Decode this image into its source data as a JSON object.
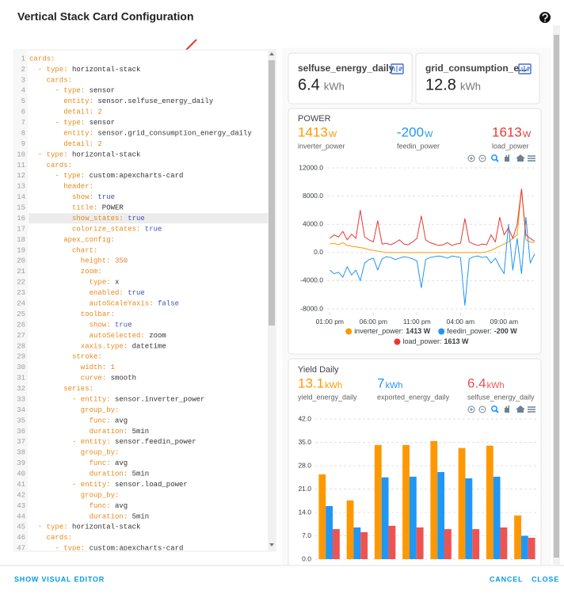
{
  "dialog": {
    "title": "Vertical Stack Card Configuration"
  },
  "editor": {
    "lines": [
      {
        "n": 1,
        "key": "cards:"
      },
      {
        "n": 2,
        "key": "  - type:",
        "value": "horizontal-stack"
      },
      {
        "n": 3,
        "key": "    cards:"
      },
      {
        "n": 4,
        "key": "      - type:",
        "value": "sensor"
      },
      {
        "n": 5,
        "key": "        entity:",
        "value": "sensor.selfuse_energy_daily"
      },
      {
        "n": 6,
        "key": "        detail:",
        "value": "2"
      },
      {
        "n": 7,
        "key": "      - type:",
        "value": "sensor"
      },
      {
        "n": 8,
        "key": "        entity:",
        "value": "sensor.grid_consumption_energy_daily"
      },
      {
        "n": 9,
        "key": "        detail:",
        "value": "2"
      },
      {
        "n": 10,
        "key": "  - type:",
        "value": "horizontal-stack"
      },
      {
        "n": 11,
        "key": "    cards:"
      },
      {
        "n": 12,
        "key": "      - type:",
        "value": "custom:apexcharts-card"
      },
      {
        "n": 13,
        "key": "        header:"
      },
      {
        "n": 14,
        "key": "          show:",
        "value": "true"
      },
      {
        "n": 15,
        "key": "          title:",
        "value": "POWER"
      },
      {
        "n": 16,
        "key": "          show_states:",
        "value": "true",
        "active": true
      },
      {
        "n": 17,
        "key": "          colorize_states:",
        "value": "true"
      },
      {
        "n": 18,
        "key": "        apex_config:"
      },
      {
        "n": 19,
        "key": "          chart:"
      },
      {
        "n": 20,
        "key": "            height:",
        "value": "350"
      },
      {
        "n": 21,
        "key": "            zoom:"
      },
      {
        "n": 22,
        "key": "              type:",
        "value": "x"
      },
      {
        "n": 23,
        "key": "              enabled:",
        "value": "true"
      },
      {
        "n": 24,
        "key": "              autoScaleYaxis:",
        "value": "false"
      },
      {
        "n": 25,
        "key": "            toolbar:"
      },
      {
        "n": 26,
        "key": "              show:",
        "value": "true"
      },
      {
        "n": 27,
        "key": "              autoSelected:",
        "value": "zoom"
      },
      {
        "n": 28,
        "key": "            xaxis.type:",
        "value": "datetime"
      },
      {
        "n": 29,
        "key": "          stroke:"
      },
      {
        "n": 30,
        "key": "            width:",
        "value": "1"
      },
      {
        "n": 31,
        "key": "            curve:",
        "value": "smooth"
      },
      {
        "n": 32,
        "key": "        series:"
      },
      {
        "n": 33,
        "key": "          - entity:",
        "value": "sensor.inverter_power"
      },
      {
        "n": 34,
        "key": "            group_by:"
      },
      {
        "n": 35,
        "key": "              func:",
        "value": "avg"
      },
      {
        "n": 36,
        "key": "              duration:",
        "value": "5min"
      },
      {
        "n": 37,
        "key": "          - entity:",
        "value": "sensor.feedin_power"
      },
      {
        "n": 38,
        "key": "            group_by:"
      },
      {
        "n": 39,
        "key": "              func:",
        "value": "avg"
      },
      {
        "n": 40,
        "key": "              duration:",
        "value": "5min"
      },
      {
        "n": 41,
        "key": "          - entity:",
        "value": "sensor.load_power"
      },
      {
        "n": 42,
        "key": "            group_by:"
      },
      {
        "n": 43,
        "key": "              func:",
        "value": "avg"
      },
      {
        "n": 44,
        "key": "              duration:",
        "value": "5min"
      },
      {
        "n": 45,
        "key": "  - type:",
        "value": "horizontal-stack"
      },
      {
        "n": 46,
        "key": "    cards:"
      },
      {
        "n": 47,
        "key": "      - type:",
        "value": "custom:apexcharts-card"
      }
    ]
  },
  "entity_cards": [
    {
      "name": "selfuse_energy_daily",
      "value": "6.4",
      "unit": "kWh"
    },
    {
      "name": "grid_consumption_e...",
      "value": "12.8",
      "unit": "kWh"
    }
  ],
  "power_card": {
    "title": "POWER",
    "chart": {
      "type": "line",
      "x": [
        13,
        13.5,
        14,
        14.5,
        15,
        15.5,
        16,
        16.5,
        17,
        17.5,
        18,
        18.5,
        19,
        19.5,
        20,
        20.5,
        21,
        21.5,
        22,
        22.5,
        23,
        23.5,
        24,
        24.5,
        25,
        25.5,
        26,
        26.5,
        27,
        27.5,
        28,
        28.5,
        29,
        29.5,
        30,
        30.5,
        31,
        31.5,
        32,
        32.5,
        33,
        33.5,
        34,
        34.5,
        35,
        35.5,
        36,
        36.5
      ],
      "xlim": [
        12.7,
        36.6
      ],
      "xticks": [
        {
          "value": 13,
          "label": "01:00 pm"
        },
        {
          "value": 18,
          "label": "06:00 pm"
        },
        {
          "value": 23,
          "label": "11:00 pm"
        },
        {
          "value": 28,
          "label": "04:00 am"
        },
        {
          "value": 33,
          "label": "09:00 am"
        }
      ],
      "ylim": [
        -8500,
        12000
      ],
      "yticks": [
        {
          "value": 12000,
          "label": "12000.0"
        },
        {
          "value": 8000,
          "label": "8000.0"
        },
        {
          "value": 4000,
          "label": "4000.0"
        },
        {
          "value": 0,
          "label": "0.0"
        },
        {
          "value": -4000,
          "label": "-4000.0"
        },
        {
          "value": -8000,
          "label": "-8000.0"
        }
      ],
      "grid": true,
      "series": [
        {
          "name": "inverter_power",
          "color": "#ff9800",
          "state": 1413,
          "unit": "W",
          "legend_label": "inverter_power:",
          "legend_value": "1413 W",
          "values": [
            1200,
            1300,
            1100,
            1400,
            1000,
            900,
            800,
            700,
            600,
            400,
            300,
            200,
            100,
            0,
            0,
            0,
            0,
            0,
            0,
            0,
            0,
            0,
            0,
            0,
            0,
            0,
            0,
            0,
            0,
            0,
            0,
            0,
            0,
            0,
            0,
            0,
            100,
            300,
            600,
            900,
            1200,
            1500,
            2000,
            2500,
            9000,
            1800,
            1500,
            1413
          ]
        },
        {
          "name": "feedin_power",
          "color": "#2196f3",
          "state": -200,
          "unit": "W",
          "legend_label": "feedin_power:",
          "legend_value": "-200 W",
          "values": [
            -2500,
            -3000,
            -2800,
            -3500,
            -2000,
            -3200,
            -2500,
            -4000,
            -1500,
            -1000,
            -800,
            -2500,
            -900,
            -600,
            -700,
            -1000,
            -800,
            -600,
            -700,
            -900,
            -1200,
            -5000,
            -1000,
            -700,
            -600,
            -500,
            -600,
            -800,
            -500,
            -600,
            -700,
            -7500,
            -900,
            -600,
            -500,
            -700,
            -600,
            -1500,
            -800,
            -2000,
            -3000,
            4000,
            -2500,
            2000,
            -3000,
            5000,
            -1500,
            -200
          ]
        },
        {
          "name": "load_power",
          "color": "#e53935",
          "state": 1613,
          "unit": "W",
          "legend_label": "load_power:",
          "legend_value": "1613 W",
          "values": [
            2000,
            2500,
            2200,
            3000,
            1800,
            2600,
            2000,
            6000,
            2200,
            1800,
            1500,
            4500,
            1200,
            1300,
            1100,
            1400,
            1800,
            1200,
            1100,
            1500,
            2000,
            5200,
            1800,
            1400,
            1200,
            1000,
            1100,
            1400,
            1000,
            1200,
            1300,
            4800,
            1500,
            1200,
            1000,
            1200,
            1100,
            2500,
            1500,
            5000,
            2500,
            3500,
            2000,
            4000,
            9000,
            2500,
            2000,
            1613
          ]
        }
      ]
    }
  },
  "yield_card": {
    "title": "Yield Daily",
    "chart": {
      "type": "bar",
      "categories": [
        null,
        null,
        null,
        null,
        null,
        null,
        null,
        null
      ],
      "ylim": [
        0,
        42
      ],
      "yticks": [
        {
          "value": 0,
          "label": "0.0"
        },
        {
          "value": 7,
          "label": "7.0"
        },
        {
          "value": 14,
          "label": "14.0"
        },
        {
          "value": 21,
          "label": "21.0"
        },
        {
          "value": 28,
          "label": "28.0"
        },
        {
          "value": 35,
          "label": "35.0"
        },
        {
          "value": 42,
          "label": "42.0"
        }
      ],
      "grid": true,
      "series": [
        {
          "name": "yield_energy_daily",
          "color": "#ff9800",
          "state": 13.1,
          "unit": "kWh",
          "values": [
            25.4,
            17.6,
            34.2,
            34.2,
            35.4,
            33.3,
            34.0,
            13.1
          ]
        },
        {
          "name": "exported_energy_daily",
          "color": "#2196f3",
          "state": 7,
          "unit": "kWh",
          "values": [
            15.9,
            9.5,
            24.5,
            24.7,
            26.1,
            24.2,
            24.7,
            7
          ]
        },
        {
          "name": "selfuse_energy_daily",
          "color": "#ef5350",
          "state": 6.4,
          "unit": "kWh",
          "values": [
            9.0,
            8.1,
            10.0,
            9.5,
            9.0,
            9.0,
            9.5,
            6.4
          ]
        }
      ]
    }
  },
  "footer": {
    "left": "SHOW VISUAL EDITOR",
    "cancel": "CANCEL",
    "close": "CLOSE"
  }
}
